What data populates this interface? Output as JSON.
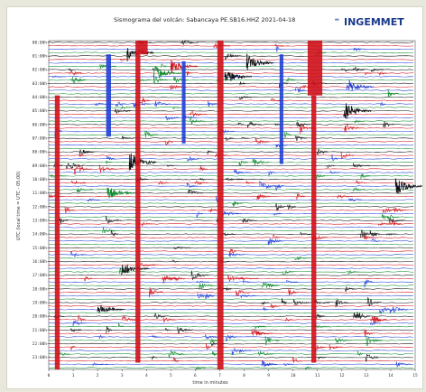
{
  "chart_data": {
    "type": "line",
    "title": "Sismograma del volcán: Sabancaya   PE.SB16.HHZ  2021-04-18",
    "xlabel": "time in minutes",
    "ylabel": "UTC (local time = UTC - 05:00)",
    "x_ticks": [
      0,
      1,
      2,
      3,
      4,
      5,
      6,
      7,
      8,
      9,
      10,
      11,
      12,
      13,
      14,
      15
    ],
    "xlim": [
      0,
      15
    ],
    "hours": [
      "00:00h",
      "01:00h",
      "02:00h",
      "03:00h",
      "04:00h",
      "05:00h",
      "06:00h",
      "07:00h",
      "08:00h",
      "09:00h",
      "10:00h",
      "11:00h",
      "12:00h",
      "13:00h",
      "14:00h",
      "15:00h",
      "16:00h",
      "17:00h",
      "18:00h",
      "19:00h",
      "20:00h",
      "21:00h",
      "22:00h",
      "23:00h"
    ],
    "trace_colors": [
      "#111111",
      "#d0101a",
      "#1f3fd6",
      "#0f8a2e"
    ],
    "traces_per_hour": 4,
    "grid": false
  },
  "logo": {
    "text": "INGEMMET"
  }
}
